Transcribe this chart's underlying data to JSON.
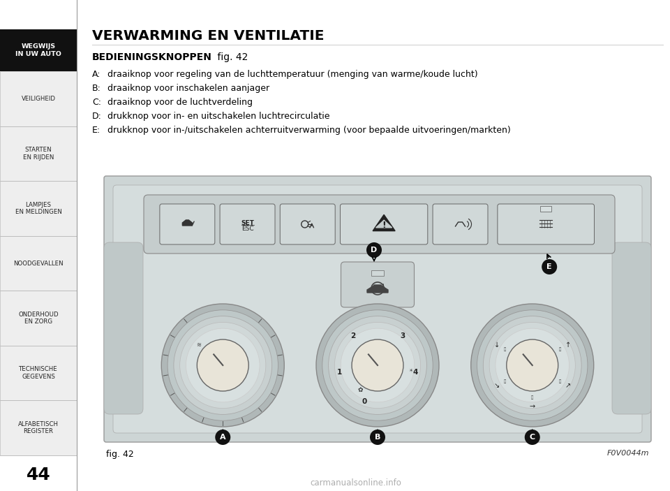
{
  "page_number": "44",
  "title": "VERWARMING EN VENTILATIE",
  "subtitle_bold": "BEDIENINGSKNOPPEN",
  "subtitle_normal": " fig. 42",
  "items": [
    [
      "A:",
      " draaiknop voor regeling van de luchttemperatuur (menging van warme/koude lucht)"
    ],
    [
      "B:",
      " draaiknop voor inschakelen aanjager"
    ],
    [
      "C:",
      " draaiknop voor de luchtverdeling"
    ],
    [
      "D:",
      " drukknop voor in- en uitschakelen luchtrecirculatie"
    ],
    [
      "E:",
      " drukknop voor in-/uitschakelen achterruitverwarming (voor bepaalde uitvoeringen/markten)"
    ]
  ],
  "fig_label": "fig. 42",
  "fig_code": "F0V0044m",
  "sidebar_items": [
    "WEGWIJS\nIN UW AUTO",
    "VEILIGHEID",
    "STARTEN\nEN RIJDEN",
    "LAMPJES\nEN MELDINGEN",
    "NOODGEVALLEN",
    "ONDERHOUD\nEN ZORG",
    "TECHNISCHE\nGEGEVENS",
    "ALFABETISCH\nREGISTER"
  ],
  "bg_color": "#ffffff",
  "sidebar_bg": "#eeeeee",
  "sidebar_active_bg": "#111111",
  "sidebar_active_fg": "#ffffff",
  "sidebar_fg": "#222222",
  "panel_bg": "#cdd5d5",
  "panel_inner_bg": "#d5dddd",
  "knob_outer": "#bec8c8",
  "knob_mid": "#c8d0d0",
  "knob_inner_bg": "#e8e4d8",
  "knob_center_bg": "#e0ddd0"
}
